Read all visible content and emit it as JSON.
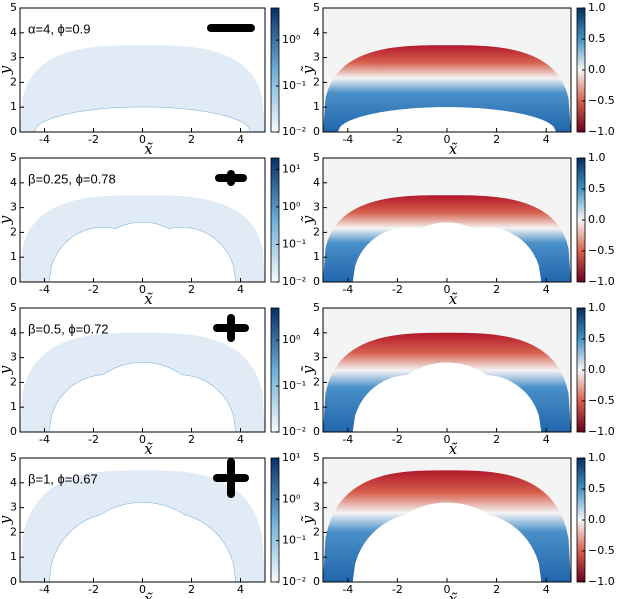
{
  "chart_data": [
    {
      "type": "heatmap",
      "annotation": "α=4, ϕ=0.9",
      "xlabel": "x̃",
      "ylabel": "ỹ",
      "xlim": [
        -5,
        5
      ],
      "ylim": [
        0,
        5
      ],
      "xticks": [
        -4,
        -2,
        0,
        2,
        4
      ],
      "yticks": [
        0,
        1,
        2,
        3,
        4,
        5
      ],
      "colorbar": {
        "scale": "log",
        "lim": [
          0.01,
          5
        ],
        "ticks": [
          {
            "value": 0.01,
            "label": "10⁻²"
          },
          {
            "value": 0.1,
            "label": "10⁻¹"
          },
          {
            "value": 1,
            "label": "10⁰"
          }
        ]
      }
    },
    {
      "type": "heatmap",
      "xlabel": "x̃",
      "ylabel": "ỹ",
      "xlim": [
        -5,
        5
      ],
      "ylim": [
        0,
        5
      ],
      "xticks": [
        -4,
        -2,
        0,
        2,
        4
      ],
      "yticks": [
        0,
        1,
        2,
        3,
        4,
        5
      ],
      "colorbar": {
        "scale": "linear",
        "lim": [
          -1,
          1
        ],
        "ticks": [
          {
            "value": -1,
            "label": "−1.0"
          },
          {
            "value": -0.5,
            "label": "−0.5"
          },
          {
            "value": 0,
            "label": "0.0"
          },
          {
            "value": 0.5,
            "label": "0.5"
          },
          {
            "value": 1,
            "label": "1.0"
          }
        ]
      }
    },
    {
      "type": "heatmap",
      "annotation": "β=0.25, ϕ=0.78",
      "xlabel": "x̃",
      "ylabel": "ỹ",
      "xlim": [
        -5,
        5
      ],
      "ylim": [
        0,
        5
      ],
      "xticks": [
        -4,
        -2,
        0,
        2,
        4
      ],
      "yticks": [
        0,
        1,
        2,
        3,
        4,
        5
      ],
      "colorbar": {
        "scale": "log",
        "lim": [
          0.01,
          20
        ],
        "ticks": [
          {
            "value": 0.01,
            "label": "10⁻²"
          },
          {
            "value": 0.1,
            "label": "10⁻¹"
          },
          {
            "value": 1,
            "label": "10⁰"
          },
          {
            "value": 10,
            "label": "10¹"
          }
        ]
      }
    },
    {
      "type": "heatmap",
      "xlabel": "x̃",
      "ylabel": "ỹ",
      "xlim": [
        -5,
        5
      ],
      "ylim": [
        0,
        5
      ],
      "xticks": [
        -4,
        -2,
        0,
        2,
        4
      ],
      "yticks": [
        0,
        1,
        2,
        3,
        4,
        5
      ],
      "colorbar": {
        "scale": "linear",
        "lim": [
          -1,
          1
        ],
        "ticks": [
          {
            "value": -1,
            "label": "−1.0"
          },
          {
            "value": -0.5,
            "label": "−0.5"
          },
          {
            "value": 0,
            "label": "0.0"
          },
          {
            "value": 0.5,
            "label": "0.5"
          },
          {
            "value": 1,
            "label": "1.0"
          }
        ]
      }
    },
    {
      "type": "heatmap",
      "annotation": "β=0.5, ϕ=0.72",
      "xlabel": "x̃",
      "ylabel": "ỹ",
      "xlim": [
        -5,
        5
      ],
      "ylim": [
        0,
        5
      ],
      "xticks": [
        -4,
        -2,
        0,
        2,
        4
      ],
      "yticks": [
        0,
        1,
        2,
        3,
        4,
        5
      ],
      "colorbar": {
        "scale": "log",
        "lim": [
          0.01,
          5
        ],
        "ticks": [
          {
            "value": 0.01,
            "label": "10⁻²"
          },
          {
            "value": 0.1,
            "label": "10⁻¹"
          },
          {
            "value": 1,
            "label": "10⁰"
          }
        ]
      }
    },
    {
      "type": "heatmap",
      "xlabel": "x̃",
      "ylabel": "ỹ",
      "xlim": [
        -5,
        5
      ],
      "ylim": [
        0,
        5
      ],
      "xticks": [
        -4,
        -2,
        0,
        2,
        4
      ],
      "yticks": [
        0,
        1,
        2,
        3,
        4,
        5
      ],
      "colorbar": {
        "scale": "linear",
        "lim": [
          -1,
          1
        ],
        "ticks": [
          {
            "value": -1,
            "label": "−1.0"
          },
          {
            "value": -0.5,
            "label": "−0.5"
          },
          {
            "value": 0,
            "label": "0.0"
          },
          {
            "value": 0.5,
            "label": "0.5"
          },
          {
            "value": 1,
            "label": "1.0"
          }
        ]
      }
    },
    {
      "type": "heatmap",
      "annotation": "β=1, ϕ=0.67",
      "xlabel": "x̃",
      "ylabel": "ỹ",
      "xlim": [
        -5,
        5
      ],
      "ylim": [
        0,
        5
      ],
      "xticks": [
        -4,
        -2,
        0,
        2,
        4
      ],
      "yticks": [
        0,
        1,
        2,
        3,
        4,
        5
      ],
      "colorbar": {
        "scale": "log",
        "lim": [
          0.01,
          10
        ],
        "ticks": [
          {
            "value": 0.01,
            "label": "10⁻²"
          },
          {
            "value": 0.1,
            "label": "10⁻¹"
          },
          {
            "value": 1,
            "label": "10⁰"
          },
          {
            "value": 10,
            "label": "10¹"
          }
        ]
      }
    },
    {
      "type": "heatmap",
      "xlabel": "x̃",
      "ylabel": "ỹ",
      "xlim": [
        -5,
        5
      ],
      "ylim": [
        0,
        5
      ],
      "xticks": [
        -4,
        -2,
        0,
        2,
        4
      ],
      "yticks": [
        0,
        1,
        2,
        3,
        4,
        5
      ],
      "colorbar": {
        "scale": "linear",
        "lim": [
          -1,
          1
        ],
        "ticks": [
          {
            "value": -1,
            "label": "−1.0"
          },
          {
            "value": -0.5,
            "label": "−0.5"
          },
          {
            "value": 0,
            "label": "0.0"
          },
          {
            "value": 0.5,
            "label": "0.5"
          },
          {
            "value": 1,
            "label": "1.0"
          }
        ]
      }
    }
  ]
}
